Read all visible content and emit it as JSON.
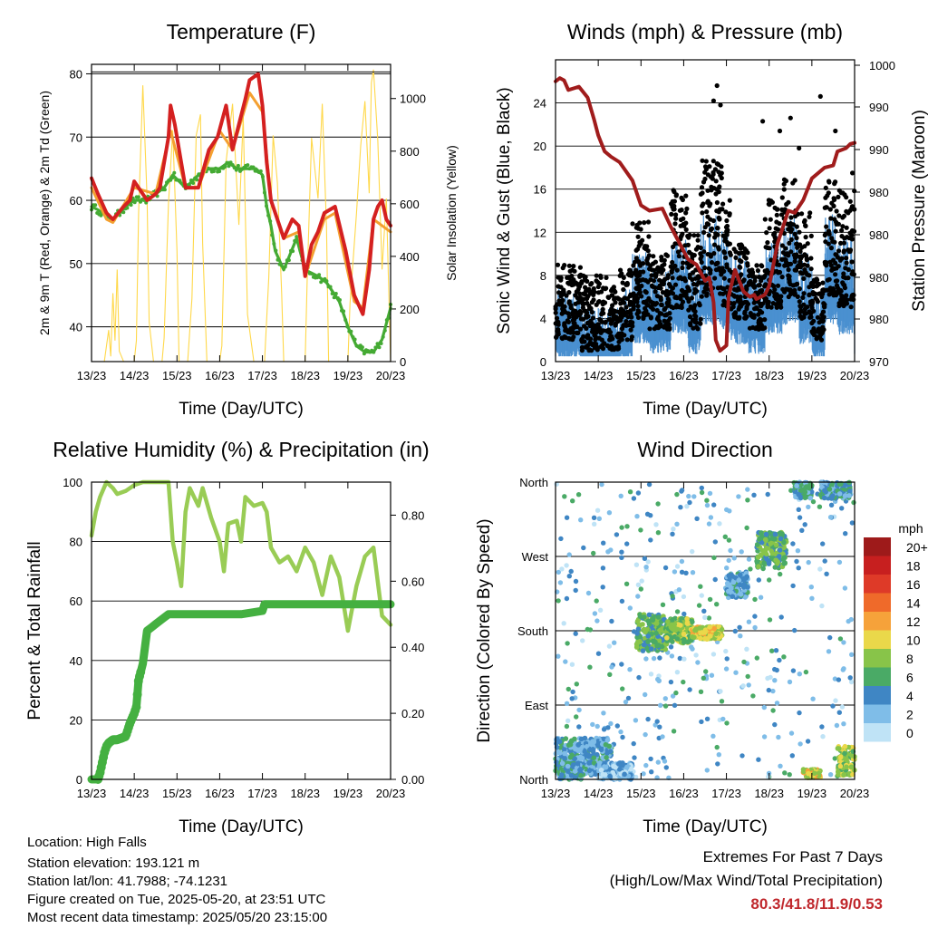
{
  "chart_data": [
    {
      "type": "line",
      "title": "Temperature (F)",
      "xlabel": "Time (Day/UTC)",
      "ylabel": "2m & 9m T (Red, Orange) & 2m Td (Green)",
      "y2label": "Solar Insolation (Yellow)",
      "xticks": [
        "13/23",
        "14/23",
        "15/23",
        "16/23",
        "17/23",
        "18/23",
        "19/23",
        "20/23"
      ],
      "yticks": [
        40,
        50,
        60,
        70,
        80
      ],
      "y2ticks": [
        0,
        200,
        400,
        600,
        800,
        1000
      ],
      "ylim": [
        34.5,
        81.5
      ],
      "y2lim": [
        0,
        1130
      ],
      "series": [
        {
          "color": "#d42020",
          "x": [
            0,
            0.15,
            0.35,
            0.5,
            0.75,
            0.9,
            1.0,
            1.3,
            1.5,
            1.6,
            1.8,
            1.85,
            1.95,
            2.2,
            2.5,
            2.75,
            2.95,
            3.15,
            3.3,
            3.45,
            3.6,
            3.7,
            3.9,
            4.0,
            4.1,
            4.2,
            4.5,
            4.7,
            4.85,
            5.0,
            5.15,
            5.3,
            5.45,
            5.7,
            5.95,
            6.15,
            6.35,
            6.5,
            6.6,
            6.7,
            6.8,
            6.9,
            7.0
          ],
          "y": [
            63.5,
            61,
            58,
            57,
            59,
            60,
            63,
            60,
            61,
            62,
            70,
            75,
            72,
            62,
            62,
            68,
            70,
            75,
            68,
            72,
            76,
            79,
            80,
            75,
            66,
            60,
            54,
            57,
            56,
            48,
            53,
            55,
            58,
            59,
            52,
            45,
            42,
            49,
            57,
            59,
            60,
            57,
            56
          ]
        },
        {
          "color": "#f4a030",
          "x": [
            0,
            0.35,
            0.5,
            1.0,
            1.5,
            1.85,
            2.2,
            2.5,
            3.0,
            3.3,
            3.7,
            4.0,
            4.2,
            4.5,
            4.85,
            5.0,
            5.45,
            5.7,
            6.15,
            6.35,
            6.6,
            7.0
          ],
          "y": [
            62,
            57,
            56.5,
            62,
            61,
            71,
            62,
            62,
            71,
            68,
            77,
            74,
            60,
            54,
            55,
            48,
            57,
            58,
            44,
            43,
            57,
            55
          ]
        },
        {
          "color": "#44aa33",
          "x": [
            0,
            0.15,
            0.35,
            0.5,
            0.8,
            1.0,
            1.3,
            1.5,
            1.7,
            1.9,
            2.2,
            2.5,
            2.75,
            3.0,
            3.2,
            3.4,
            3.6,
            3.85,
            4.0,
            4.1,
            4.2,
            4.3,
            4.5,
            4.8,
            5.0,
            5.3,
            5.5,
            5.8,
            6.0,
            6.2,
            6.4,
            6.6,
            6.8,
            7.0
          ],
          "y": [
            59,
            58.5,
            57.5,
            57,
            59,
            60,
            60,
            61,
            62,
            64,
            62,
            64,
            65,
            65,
            66,
            65,
            65,
            65,
            64,
            59,
            56,
            52,
            49,
            54,
            49,
            48,
            47,
            44,
            40,
            37,
            36,
            36,
            38,
            43
          ]
        }
      ],
      "solar": {
        "color": "#ffd84a",
        "x": [
          0.3,
          0.4,
          0.45,
          0.5,
          0.55,
          0.6,
          0.65,
          0.75,
          0.85,
          0.95,
          1.0,
          1.05,
          1.1,
          1.2,
          1.3,
          1.35,
          1.45,
          1.55,
          1.65,
          1.7,
          1.8,
          1.9,
          2.0,
          2.05,
          2.15,
          2.25,
          2.35,
          2.45,
          2.55,
          2.6,
          2.7,
          2.85,
          3.0,
          3.05,
          3.15,
          3.3,
          3.45,
          3.55,
          3.65,
          3.8,
          4.0,
          4.05,
          4.15,
          4.25,
          4.35,
          4.45,
          4.5,
          4.6,
          4.75,
          4.85,
          5.0,
          5.05,
          5.15,
          5.3,
          5.4,
          5.5,
          5.55,
          5.6,
          5.7,
          5.85,
          6.0,
          6.05,
          6.2,
          6.3,
          6.4,
          6.5,
          6.55,
          6.6,
          6.7,
          6.8,
          6.9,
          7.0
        ],
        "y": [
          0,
          120,
          20,
          260,
          80,
          350,
          40,
          0,
          0,
          0,
          0,
          80,
          560,
          1050,
          620,
          150,
          0,
          0,
          0,
          90,
          600,
          880,
          420,
          0,
          0,
          0,
          240,
          860,
          940,
          450,
          0,
          0,
          0,
          60,
          760,
          980,
          520,
          930,
          180,
          0,
          0,
          0,
          320,
          860,
          680,
          260,
          0,
          0,
          0,
          0,
          0,
          330,
          850,
          620,
          980,
          510,
          0,
          0,
          0,
          0,
          0,
          220,
          560,
          820,
          990,
          640,
          1060,
          1110,
          840,
          350,
          620,
          0
        ]
      }
    },
    {
      "type": "scatter",
      "title": "Winds (mph) & Pressure (mb)",
      "xlabel": "Time (Day/UTC)",
      "ylabel": "Sonic Wind & Gust (Blue, Black)",
      "y2label": "Station Pressure (Maroon)",
      "xticks": [
        "13/23",
        "14/23",
        "15/23",
        "16/23",
        "17/23",
        "18/23",
        "19/23",
        "20/23"
      ],
      "yticks": [
        0,
        4,
        8,
        12,
        16,
        20,
        24
      ],
      "y2ticks": [
        "970",
        "980",
        "980",
        "980",
        "980",
        "990",
        "990",
        "1000",
        "1000"
      ],
      "ylim": [
        0,
        28
      ],
      "pressure_color": "#a01c1c",
      "pressure": {
        "x": [
          0,
          0.1,
          0.2,
          0.3,
          0.55,
          0.75,
          0.9,
          1.0,
          1.15,
          1.3,
          1.5,
          1.8,
          2.0,
          2.2,
          2.5,
          2.7,
          2.9,
          3.1,
          3.3,
          3.5,
          3.6,
          3.7,
          3.75,
          3.85,
          4.0,
          4.05,
          4.2,
          4.4,
          4.55,
          4.65,
          4.7,
          4.8,
          4.9,
          5.0,
          5.2,
          5.45,
          5.6,
          5.8,
          6.0,
          6.3,
          6.5,
          6.6,
          6.8,
          6.9,
          7.0
        ],
        "y": [
          26.0,
          26.3,
          26.1,
          25.2,
          25.5,
          24.5,
          22.5,
          21.0,
          19.5,
          19.0,
          18.5,
          16.8,
          14.5,
          14.0,
          14.2,
          12.5,
          11.0,
          9.5,
          9.0,
          7.5,
          7.8,
          5.5,
          2.0,
          1.0,
          1.5,
          6.0,
          8.5,
          6.5,
          6.0,
          6.2,
          5.8,
          6.0,
          6.2,
          7.0,
          11.0,
          14.0,
          13.8,
          15.0,
          17.0,
          18.0,
          18.2,
          19.5,
          19.8,
          20.2,
          20.3
        ]
      },
      "gust_color": "#000000",
      "wind_color": "#4a90d0",
      "gust_ranges": [
        [
          0,
          0.6,
          2,
          9
        ],
        [
          0.6,
          1.2,
          1,
          8
        ],
        [
          1.2,
          1.5,
          1,
          7
        ],
        [
          1.5,
          1.8,
          2,
          9
        ],
        [
          1.8,
          2.2,
          4,
          13
        ],
        [
          2.2,
          2.7,
          3,
          10
        ],
        [
          2.7,
          3.1,
          5,
          16
        ],
        [
          3.1,
          3.4,
          3,
          12
        ],
        [
          3.4,
          3.9,
          6,
          19
        ],
        [
          3.9,
          4.1,
          5,
          15
        ],
        [
          4.1,
          4.5,
          4,
          11
        ],
        [
          4.5,
          4.9,
          3,
          9
        ],
        [
          4.9,
          5.3,
          5,
          15
        ],
        [
          5.3,
          5.7,
          6,
          17
        ],
        [
          5.7,
          6.0,
          4,
          14
        ],
        [
          6.0,
          6.3,
          2,
          8
        ],
        [
          6.3,
          6.6,
          6,
          17
        ],
        [
          6.6,
          7.0,
          5,
          16
        ]
      ],
      "gust_peaks": [
        [
          3.78,
          25.6
        ],
        [
          3.86,
          23.8
        ],
        [
          3.7,
          24.2
        ],
        [
          4.85,
          22.3
        ],
        [
          5.5,
          22.6
        ],
        [
          5.25,
          21.4
        ],
        [
          5.7,
          19.8
        ],
        [
          6.2,
          24.6
        ],
        [
          6.55,
          21.4
        ],
        [
          6.95,
          17.5
        ]
      ]
    },
    {
      "type": "line",
      "title": "Relative Humidity (%) & Precipitation (in)",
      "xlabel": "Time (Day/UTC)",
      "ylabel": "Percent & Total Rainfall",
      "xticks": [
        "13/23",
        "14/23",
        "15/23",
        "16/23",
        "17/23",
        "18/23",
        "19/23",
        "20/23"
      ],
      "yticks": [
        0,
        20,
        40,
        60,
        80,
        100
      ],
      "y2ticks": [
        "0.00",
        "0.20",
        "0.40",
        "0.60",
        "0.80"
      ],
      "ylim": [
        0,
        100
      ],
      "series": [
        {
          "name": "rh",
          "color": "#99cc55",
          "x": [
            0,
            0.1,
            0.2,
            0.35,
            0.5,
            0.6,
            0.8,
            1.0,
            1.2,
            1.4,
            1.6,
            1.8,
            1.9,
            2.0,
            2.1,
            2.2,
            2.3,
            2.5,
            2.6,
            2.8,
            3.0,
            3.1,
            3.2,
            3.4,
            3.5,
            3.6,
            3.8,
            4.0,
            4.1,
            4.2,
            4.4,
            4.6,
            4.8,
            5.0,
            5.2,
            5.4,
            5.6,
            5.8,
            6.0,
            6.2,
            6.4,
            6.6,
            6.8,
            7.0
          ],
          "y": [
            82,
            90,
            95,
            100,
            98,
            96,
            97,
            99,
            100,
            100,
            100,
            100,
            80,
            73,
            65,
            90,
            98,
            92,
            98,
            88,
            80,
            70,
            86,
            87,
            80,
            95,
            92,
            93,
            90,
            78,
            73,
            75,
            70,
            78,
            73,
            62,
            75,
            68,
            50,
            65,
            75,
            78,
            55,
            52
          ]
        },
        {
          "name": "precip",
          "color": "#44b040",
          "x": [
            0,
            0.15,
            0.2,
            0.25,
            0.3,
            0.35,
            0.4,
            0.5,
            0.6,
            0.8,
            0.9,
            1.0,
            1.05,
            1.1,
            1.2,
            1.3,
            1.4,
            1.5,
            1.6,
            1.8,
            2.0,
            2.5,
            3.0,
            3.5,
            4.0,
            4.05,
            4.5,
            5.0,
            6.0,
            7.0
          ],
          "y": [
            0,
            0,
            0.02,
            0.05,
            0.08,
            0.1,
            0.11,
            0.12,
            0.12,
            0.13,
            0.17,
            0.2,
            0.22,
            0.3,
            0.35,
            0.45,
            0.46,
            0.47,
            0.48,
            0.5,
            0.5,
            0.5,
            0.5,
            0.5,
            0.51,
            0.53,
            0.53,
            0.53,
            0.53,
            0.53
          ]
        }
      ],
      "y2lim": [
        0,
        0.9
      ]
    },
    {
      "type": "scatter",
      "title": "Wind Direction",
      "xlabel": "Time (Day/UTC)",
      "ylabel": "Direction (Colored By Speed)",
      "xticks": [
        "13/23",
        "14/23",
        "15/23",
        "16/23",
        "17/23",
        "18/23",
        "19/23",
        "20/23"
      ],
      "yticks": [
        "North",
        "East",
        "South",
        "West",
        "North"
      ],
      "ylim": [
        0,
        360
      ],
      "clusters": [
        [
          0.0,
          1.3,
          5,
          50,
          3
        ],
        [
          0.1,
          0.6,
          0,
          20,
          4
        ],
        [
          1.9,
          2.6,
          155,
          200,
          6
        ],
        [
          2.6,
          3.2,
          165,
          195,
          7
        ],
        [
          3.2,
          3.9,
          170,
          185,
          9
        ],
        [
          4.7,
          5.4,
          255,
          300,
          6
        ],
        [
          5.6,
          6.0,
          340,
          360,
          4
        ],
        [
          5.8,
          6.2,
          2,
          12,
          9
        ],
        [
          6.6,
          7.0,
          5,
          40,
          8
        ],
        [
          4.0,
          4.5,
          220,
          250,
          3
        ],
        [
          1.0,
          1.8,
          0,
          20,
          2
        ],
        [
          6.2,
          6.9,
          340,
          360,
          4
        ]
      ],
      "legend": {
        "title": "mph",
        "labels": [
          "20+",
          "18",
          "16",
          "14",
          "12",
          "10",
          "8",
          "6",
          "4",
          "2",
          "0"
        ],
        "colors": [
          "#9e1a1a",
          "#c71f1f",
          "#de3a28",
          "#ef6a2a",
          "#f6a23a",
          "#ead84a",
          "#88c449",
          "#4aaa66",
          "#3f86c4",
          "#7fbde8",
          "#bfe3f6"
        ]
      }
    }
  ],
  "meta": {
    "location": "Location: High Falls",
    "elevation": "Station elevation: 193.121 m",
    "latlon": "Station lat/lon: 41.7988; -74.1231",
    "created": "Figure created on Tue, 2025-05-20, at 23:51 UTC",
    "timestamp": "Most recent data timestamp: 2025/05/20 23:15:00"
  },
  "extremes": {
    "title": "Extremes For Past 7 Days",
    "subtitle": "(High/Low/Max Wind/Total Precipitation)",
    "values": "80.3/41.8/11.9/0.53",
    "value_color": "#c0282d"
  }
}
